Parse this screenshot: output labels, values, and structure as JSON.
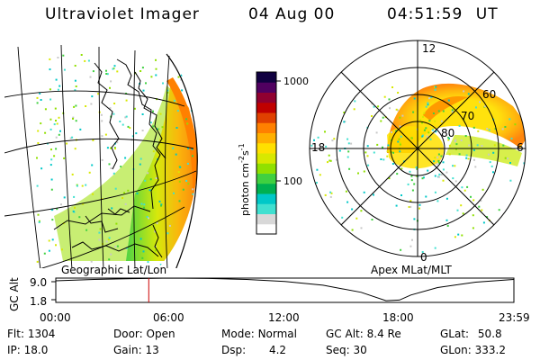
{
  "header": {
    "title": "Ultraviolet Imager",
    "date": "04 Aug 00",
    "time": "04:51:59",
    "time_zone": "UT"
  },
  "colorbar": {
    "label": "photon cm",
    "exp1": "-2",
    "mid": "s",
    "exp2": "-1",
    "ticks": [
      "1000",
      "100"
    ],
    "colors": [
      "#ffffff",
      "#d8d8d8",
      "#40e0d0",
      "#00c8c8",
      "#00b050",
      "#40d040",
      "#90e000",
      "#d8e800",
      "#ffe000",
      "#ffb000",
      "#ff8000",
      "#e04000",
      "#c00000",
      "#900030",
      "#500060",
      "#100040"
    ]
  },
  "left_panel": {
    "caption": "Geographic Lat/Lon"
  },
  "right_panel": {
    "caption": "Apex MLat/MLT",
    "mlt_labels": [
      "12",
      "18",
      "6",
      "0"
    ],
    "lat_labels": [
      "80",
      "70",
      "60"
    ]
  },
  "timeline": {
    "axis_label": "GC Alt",
    "y_ticks": [
      "9.0",
      "1.8"
    ],
    "x_ticks": [
      "00:00",
      "06:00",
      "12:00",
      "18:00",
      "23:59"
    ],
    "marker_color": "#cc0000"
  },
  "chart_data": {
    "type": "line",
    "title": "",
    "xlabel": "",
    "ylabel": "GC Alt",
    "x_unit": "UT hours",
    "xlim": [
      0,
      24
    ],
    "ylim": [
      1.8,
      9.0
    ],
    "series": [
      {
        "x": [
          0.0,
          2.0,
          4.0,
          6.0,
          8.0,
          10.0,
          12.0,
          14.0,
          16.0,
          17.3,
          18.0,
          18.6,
          20.0,
          22.0,
          23.98
        ],
        "y": [
          8.2,
          8.6,
          8.85,
          9.0,
          8.9,
          8.6,
          8.0,
          6.9,
          4.8,
          2.3,
          2.5,
          4.0,
          6.2,
          7.8,
          8.6
        ]
      }
    ],
    "marker_x": 4.87
  },
  "info": {
    "flt_label": "Flt:",
    "flt_value": "1304",
    "door_label": "Door:",
    "door_value": "Open",
    "mode_label": "Mode:",
    "mode_value": "Normal",
    "gcalt_label": "GC Alt:",
    "gcalt_value": "8.4 Re",
    "glat_label": "GLat:",
    "glat_value": "50.8",
    "ip_label": "IP:",
    "ip_value": "18.0",
    "gain_label": "Gain:",
    "gain_value": "13",
    "dsp_label": "Dsp:",
    "dsp_value": "4.2",
    "seq_label": "Seq:",
    "seq_value": "30",
    "glon_label": "GLon:",
    "glon_value": "333.2"
  }
}
